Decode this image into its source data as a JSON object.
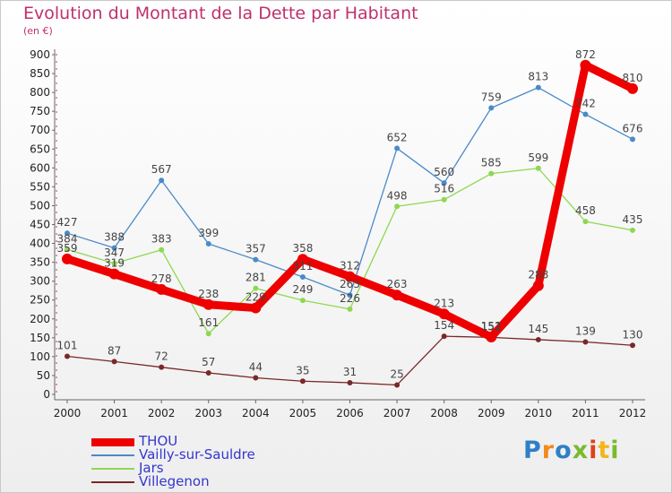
{
  "title": "Evolution du Montant de la Dette par Habitant",
  "subtitle": "(en €)",
  "logo_letters": [
    {
      "ch": "P",
      "color": "#2f7fc6"
    },
    {
      "ch": "r",
      "color": "#f28a1e"
    },
    {
      "ch": "o",
      "color": "#2f7fc6"
    },
    {
      "ch": "x",
      "color": "#79bb2d"
    },
    {
      "ch": "i",
      "color": "#e04020"
    },
    {
      "ch": "t",
      "color": "#f2b51e"
    },
    {
      "ch": "i",
      "color": "#79bb2d"
    }
  ],
  "chart_data": {
    "type": "line",
    "title": "Evolution du Montant de la Dette par Habitant",
    "subtitle": "(en €)",
    "x": [
      "2000",
      "2001",
      "2002",
      "2003",
      "2004",
      "2005",
      "2006",
      "2007",
      "2008",
      "2009",
      "2010",
      "2011",
      "2012"
    ],
    "yticks": [
      0,
      50,
      100,
      150,
      200,
      250,
      300,
      350,
      400,
      450,
      500,
      550,
      600,
      650,
      700,
      750,
      800,
      850,
      900
    ],
    "ylim": [
      0,
      900
    ],
    "grid": false,
    "legend_position": "bottom-left",
    "series": [
      {
        "name": "THOU",
        "color": "#ee0000",
        "values": [
          359,
          319,
          278,
          238,
          229,
          358,
          312,
          263,
          213,
          152,
          288,
          872,
          810
        ],
        "labels": [
          "359",
          "319",
          "278",
          "238",
          "229",
          "358",
          "312",
          "263",
          "213",
          "152",
          "288",
          "872",
          "810"
        ]
      },
      {
        "name": "Vailly-sur-Sauldre",
        "color": "#4a8ac8",
        "values": [
          427,
          388,
          567,
          399,
          357,
          311,
          263,
          652,
          560,
          759,
          813,
          742,
          676
        ],
        "labels": [
          "427",
          "388",
          "567",
          "399",
          "357",
          "311",
          "263",
          "652",
          "560",
          "759",
          "813",
          "742",
          "676"
        ]
      },
      {
        "name": "Jars",
        "color": "#8ed850",
        "values": [
          384,
          347,
          383,
          161,
          281,
          249,
          226,
          498,
          516,
          585,
          599,
          458,
          435
        ],
        "labels": [
          "384",
          "347",
          "383",
          "161",
          "281",
          "249",
          "226",
          "498",
          "516",
          "585",
          "599",
          "458",
          "435"
        ]
      },
      {
        "name": "Villegenon",
        "color": "#7a2828",
        "values": [
          101,
          87,
          72,
          57,
          44,
          35,
          31,
          25,
          154,
          151,
          145,
          139,
          130
        ],
        "labels": [
          "101",
          "87",
          "72",
          "57",
          "44",
          "35",
          "31",
          "25",
          "154",
          "151",
          "145",
          "139",
          "130"
        ]
      }
    ]
  }
}
